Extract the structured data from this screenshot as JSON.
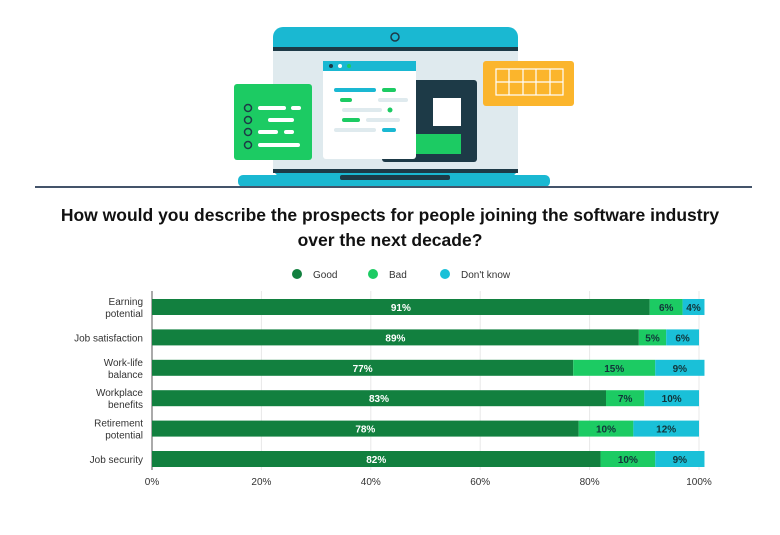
{
  "chart_data": {
    "type": "bar",
    "orientation": "horizontal",
    "stacked": true,
    "title": "How would you describe the prospects for people joining the software industry over the next decade?",
    "categories": [
      [
        "Earning",
        "potential"
      ],
      [
        "Job satisfaction"
      ],
      [
        "Work-life",
        "balance"
      ],
      [
        "Workplace",
        "benefits"
      ],
      [
        "Retirement",
        "potential"
      ],
      [
        "Job security"
      ]
    ],
    "series": [
      {
        "name": "Good",
        "color": "#12803f",
        "values": [
          91,
          89,
          77,
          83,
          78,
          82
        ]
      },
      {
        "name": "Bad",
        "color": "#1ccb63",
        "values": [
          6,
          5,
          15,
          7,
          10,
          10
        ]
      },
      {
        "name": "Don't know",
        "color": "#1ac0d8",
        "values": [
          4,
          6,
          9,
          10,
          12,
          9
        ]
      }
    ],
    "xlim": [
      0,
      100
    ],
    "xticks": [
      "0%",
      "20%",
      "40%",
      "60%",
      "80%",
      "100%"
    ],
    "legend_position": "top-center",
    "grid": true
  }
}
